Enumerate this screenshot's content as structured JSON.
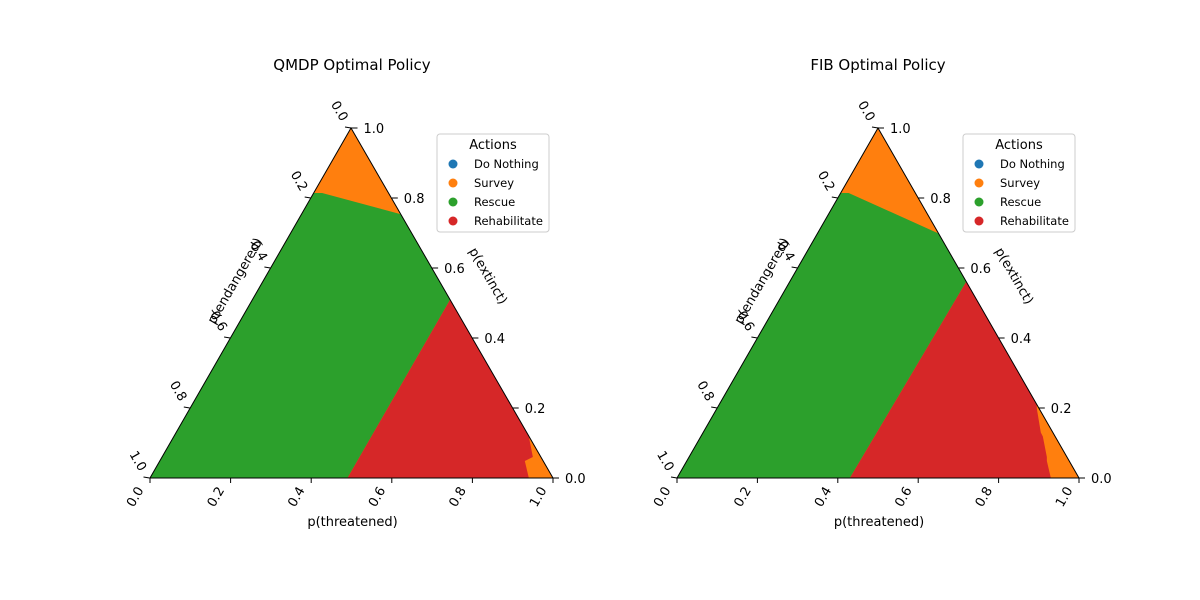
{
  "chart_data": [
    {
      "type": "ternary-region",
      "title": "QMDP Optimal Policy",
      "axes": {
        "bottom": {
          "label": "p(threatened)",
          "range": [
            0,
            1
          ],
          "ticks": [
            "0.0",
            "0.2",
            "0.4",
            "0.6",
            "0.8",
            "1.0"
          ]
        },
        "left": {
          "label": "p(endangered)",
          "range": [
            0,
            1
          ],
          "ticks": [
            "0.0",
            "0.2",
            "0.4",
            "0.6",
            "0.8",
            "1.0"
          ]
        },
        "right": {
          "label": "p(extinct)",
          "range": [
            0,
            1
          ],
          "ticks": [
            "0.0",
            "0.2",
            "0.4",
            "0.6",
            "0.8",
            "1.0"
          ]
        }
      },
      "legend": {
        "title": "Actions",
        "placement": "top-right",
        "entries": [
          {
            "name": "Do Nothing",
            "color": "#1f77b4"
          },
          {
            "name": "Survey",
            "color": "#ff7f0e"
          },
          {
            "name": "Rescue",
            "color": "#2ca02c"
          },
          {
            "name": "Rehabilitate",
            "color": "#d62728"
          }
        ]
      },
      "regions": [
        {
          "action": "Survey",
          "color": "#ff7f0e",
          "description": "band along the p(endangered)=0 edge",
          "boundary": [
            [
              0.5,
              0.5
            ],
            [
              0.45,
              0.55
            ],
            [
              0.41,
              0.59
            ],
            [
              0.4,
              0.66
            ],
            [
              0.42,
              0.8
            ],
            [
              0.42,
              1.0
            ]
          ]
        },
        {
          "action": "Rescue",
          "color": "#2ca02c",
          "description": "region with p(threatened) < 0.49",
          "boundary": [
            [
              0.49,
              0.0
            ],
            [
              0.49,
              0.66
            ]
          ]
        },
        {
          "action": "Rehabilitate",
          "color": "#d62728",
          "description": "region with p(threatened) >= 0.49 below the Survey band",
          "staircase": [
            [
              0.94,
              0.0
            ],
            [
              0.92,
              0.06
            ],
            [
              0.87,
              0.13
            ],
            [
              0.82,
              0.21
            ],
            [
              0.77,
              0.28
            ],
            [
              0.71,
              0.36
            ],
            [
              0.66,
              0.44
            ],
            [
              0.59,
              0.51
            ],
            [
              0.53,
              0.6
            ],
            [
              0.49,
              0.65
            ]
          ]
        }
      ]
    },
    {
      "type": "ternary-region",
      "title": "FIB Optimal Policy",
      "axes": {
        "bottom": {
          "label": "p(threatened)",
          "range": [
            0,
            1
          ],
          "ticks": [
            "0.0",
            "0.2",
            "0.4",
            "0.6",
            "0.8",
            "1.0"
          ]
        },
        "left": {
          "label": "p(endangered)",
          "range": [
            0,
            1
          ],
          "ticks": [
            "0.0",
            "0.2",
            "0.4",
            "0.6",
            "0.8",
            "1.0"
          ]
        },
        "right": {
          "label": "p(extinct)",
          "range": [
            0,
            1
          ],
          "ticks": [
            "0.0",
            "0.2",
            "0.4",
            "0.6",
            "0.8",
            "1.0"
          ]
        }
      },
      "legend": {
        "title": "Actions",
        "placement": "top-right",
        "entries": [
          {
            "name": "Do Nothing",
            "color": "#1f77b4"
          },
          {
            "name": "Survey",
            "color": "#ff7f0e"
          },
          {
            "name": "Rescue",
            "color": "#2ca02c"
          },
          {
            "name": "Rehabilitate",
            "color": "#d62728"
          }
        ]
      },
      "regions": [
        {
          "action": "Survey",
          "color": "#ff7f0e",
          "description": "band along the p(endangered)=0 edge",
          "boundary": [
            [
              0.5,
              0.5
            ],
            [
              0.45,
              0.55
            ],
            [
              0.41,
              0.59
            ],
            [
              0.41,
              0.63
            ],
            [
              0.42,
              0.8
            ],
            [
              0.42,
              1.0
            ]
          ]
        },
        {
          "action": "Rescue",
          "color": "#2ca02c",
          "description": "region left of a slightly slanted boundary from p(threatened)=0.43 at p(extinct)=0 to 0.44 at p(extinct)=0.62",
          "boundary": [
            [
              0.43,
              0.0
            ],
            [
              0.435,
              0.3
            ],
            [
              0.44,
              0.62
            ]
          ]
        },
        {
          "action": "Rehabilitate",
          "color": "#d62728",
          "description": "region right of the Rescue boundary below the Survey band",
          "staircase": [
            [
              0.93,
              0.0
            ],
            [
              0.89,
              0.06
            ],
            [
              0.84,
              0.13
            ],
            [
              0.79,
              0.21
            ],
            [
              0.74,
              0.28
            ],
            [
              0.68,
              0.36
            ],
            [
              0.62,
              0.44
            ],
            [
              0.57,
              0.51
            ],
            [
              0.5,
              0.6
            ],
            [
              0.46,
              0.63
            ]
          ]
        }
      ]
    }
  ]
}
